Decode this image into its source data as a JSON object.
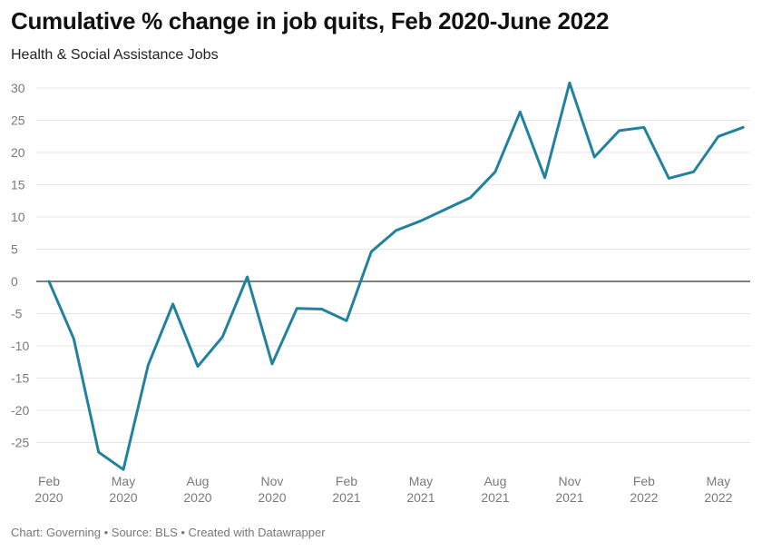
{
  "header": {
    "title": "Cumulative % change in job quits, Feb 2020-June 2022",
    "subtitle": "Health & Social Assistance Jobs"
  },
  "footer": {
    "text": "Chart: Governing • Source: BLS • Created with Datawrapper"
  },
  "colors": {
    "line": "#2182a0",
    "zero_line": "#333333",
    "grid": "#e6e6e6"
  },
  "chart_data": {
    "type": "line",
    "title": "Cumulative % change in job quits, Feb 2020-June 2022",
    "subtitle": "Health & Social Assistance Jobs",
    "xlabel": "",
    "ylabel": "",
    "ylim": [
      -29,
      31
    ],
    "yticks": [
      30,
      25,
      20,
      15,
      10,
      5,
      0,
      -5,
      -10,
      -15,
      -20,
      -25
    ],
    "ytick_labels": [
      "30",
      "25",
      "20",
      "15",
      "10",
      "5",
      "0",
      "-5",
      "-10",
      "-15",
      "-20",
      "-25"
    ],
    "xticks": [
      {
        "month": "2020-02",
        "line1": "Feb",
        "line2": "2020"
      },
      {
        "month": "2020-05",
        "line1": "May",
        "line2": "2020"
      },
      {
        "month": "2020-08",
        "line1": "Aug",
        "line2": "2020"
      },
      {
        "month": "2020-11",
        "line1": "Nov",
        "line2": "2020"
      },
      {
        "month": "2021-02",
        "line1": "Feb",
        "line2": "2021"
      },
      {
        "month": "2021-05",
        "line1": "May",
        "line2": "2021"
      },
      {
        "month": "2021-08",
        "line1": "Aug",
        "line2": "2021"
      },
      {
        "month": "2021-11",
        "line1": "Nov",
        "line2": "2021"
      },
      {
        "month": "2022-02",
        "line1": "Feb",
        "line2": "2022"
      },
      {
        "month": "2022-05",
        "line1": "May",
        "line2": "2022"
      }
    ],
    "grid": true,
    "series": [
      {
        "x": [
          "2020-02",
          "2020-03",
          "2020-04",
          "2020-05",
          "2020-06",
          "2020-07",
          "2020-08",
          "2020-09",
          "2020-10",
          "2020-11",
          "2020-12",
          "2021-01",
          "2021-02",
          "2021-03",
          "2021-04",
          "2021-05",
          "2021-06",
          "2021-07",
          "2021-08",
          "2021-09",
          "2021-10",
          "2021-11",
          "2021-12",
          "2022-01",
          "2022-02",
          "2022-03",
          "2022-04",
          "2022-05",
          "2022-06"
        ],
        "values": [
          0,
          -8.9,
          -26.5,
          -29.2,
          -13.0,
          -3.5,
          -13.2,
          -8.6,
          0.7,
          -12.8,
          -4.2,
          -4.3,
          -6.1,
          4.6,
          7.9,
          9.4,
          11.2,
          13.0,
          17.0,
          26.3,
          16.1,
          30.8,
          19.3,
          23.4,
          23.9,
          16.0,
          17.0,
          22.5,
          23.9
        ]
      }
    ]
  }
}
